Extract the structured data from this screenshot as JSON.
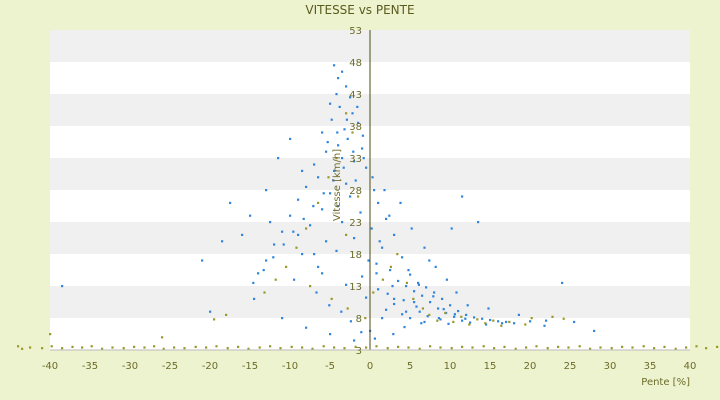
{
  "chart_data": {
    "type": "scatter",
    "title": "VITESSE vs PENTE",
    "xlabel": "Pente [%]",
    "ylabel": "Vitesse [km/h]",
    "xlim": [
      -40,
      40
    ],
    "ylim": [
      3,
      53
    ],
    "xticks": [
      -40,
      -35,
      -30,
      -25,
      -20,
      -15,
      -10,
      -5,
      0,
      5,
      10,
      15,
      20,
      25,
      30,
      35,
      40
    ],
    "xtick_labels": [
      "-40",
      "-35",
      "-30",
      "-25",
      "-20",
      "-15",
      "-10",
      "-5",
      "0",
      "5",
      "10",
      "15",
      "20",
      "25",
      "30",
      "35",
      "40"
    ],
    "yticks": [
      3,
      8,
      13,
      18,
      23,
      28,
      33,
      38,
      43,
      48,
      53
    ],
    "ytick_labels": [
      "3",
      "8",
      "13",
      "18",
      "23",
      "28",
      "33",
      "38",
      "43",
      "48",
      "53"
    ],
    "grid": "horizontal bands",
    "colors": {
      "background": "#eef3cf",
      "band_light": "#ffffff",
      "band_dark": "#f0f0f0",
      "axis": "#4b4b14",
      "series_blue": "#2e86de",
      "series_olive": "#9a9a2a"
    },
    "series": [
      {
        "color": "#2e86de",
        "points": [
          [
            -4.5,
            47.5
          ],
          [
            -4,
            45.5
          ],
          [
            -3.5,
            46.5
          ],
          [
            -3,
            44.2
          ],
          [
            -4.2,
            43
          ],
          [
            -2.5,
            42.5
          ],
          [
            -5,
            41.5
          ],
          [
            -3.8,
            41
          ],
          [
            -2.2,
            40
          ],
          [
            -4.8,
            39
          ],
          [
            -1.5,
            38.5
          ],
          [
            -3.2,
            37.5
          ],
          [
            -6,
            37
          ],
          [
            -2.8,
            36
          ],
          [
            -4,
            35
          ],
          [
            -1,
            34.5
          ],
          [
            -5.5,
            34
          ],
          [
            -3.5,
            33
          ],
          [
            -2,
            32.5
          ],
          [
            -7,
            32
          ],
          [
            -0.5,
            31.5
          ],
          [
            -4.5,
            31
          ],
          [
            -6.5,
            30
          ],
          [
            -1.8,
            29.5
          ],
          [
            -3,
            29
          ],
          [
            -8,
            28.5
          ],
          [
            0.5,
            28
          ],
          [
            -5,
            27.5
          ],
          [
            -2.5,
            27
          ],
          [
            -9,
            26.5
          ],
          [
            1,
            26
          ],
          [
            -4,
            25.5
          ],
          [
            -6,
            25
          ],
          [
            -1.2,
            24.5
          ],
          [
            -10,
            24
          ],
          [
            2,
            23.5
          ],
          [
            -3.5,
            23
          ],
          [
            -7.5,
            22.5
          ],
          [
            0.2,
            22
          ],
          [
            -11,
            21.5
          ],
          [
            3,
            21
          ],
          [
            -2,
            20.5
          ],
          [
            -5.5,
            20
          ],
          [
            -12,
            19.5
          ],
          [
            1.5,
            19
          ],
          [
            -4.2,
            18.5
          ],
          [
            -8.5,
            18
          ],
          [
            4,
            17.5
          ],
          [
            -13,
            17
          ],
          [
            0.8,
            16.5
          ],
          [
            -6.5,
            16
          ],
          [
            2.5,
            15.5
          ],
          [
            -14,
            15
          ],
          [
            5,
            14.8
          ],
          [
            -1,
            14.5
          ],
          [
            -9.5,
            14
          ],
          [
            3.5,
            13.8
          ],
          [
            6,
            13.5
          ],
          [
            -3,
            13.2
          ],
          [
            4.5,
            13
          ],
          [
            7,
            12.8
          ],
          [
            1,
            12.5
          ],
          [
            5.5,
            12.2
          ],
          [
            8,
            12
          ],
          [
            2.2,
            11.8
          ],
          [
            6.5,
            11.5
          ],
          [
            -0.5,
            11.2
          ],
          [
            9,
            11
          ],
          [
            4.2,
            10.8
          ],
          [
            7.5,
            10.5
          ],
          [
            3,
            10.2
          ],
          [
            10,
            10
          ],
          [
            5.8,
            9.8
          ],
          [
            8.5,
            9.5
          ],
          [
            2,
            9.3
          ],
          [
            11,
            9.1
          ],
          [
            6.2,
            9
          ],
          [
            9.5,
            8.8
          ],
          [
            4,
            8.6
          ],
          [
            12,
            8.5
          ],
          [
            7.2,
            8.3
          ],
          [
            10.5,
            8.2
          ],
          [
            13,
            8.1
          ],
          [
            5,
            8
          ],
          [
            14,
            7.9
          ],
          [
            8.8,
            7.8
          ],
          [
            15,
            7.7
          ],
          [
            11.5,
            7.6
          ],
          [
            16,
            7.5
          ],
          [
            6.8,
            7.4
          ],
          [
            17,
            7.4
          ],
          [
            12.5,
            7.3
          ],
          [
            18,
            7.2
          ],
          [
            9.8,
            7.1
          ],
          [
            20,
            7.5
          ],
          [
            14.5,
            7
          ],
          [
            22,
            7.6
          ],
          [
            16.5,
            7.2
          ],
          [
            24,
            13.5
          ],
          [
            28,
            6
          ],
          [
            -38.5,
            13
          ],
          [
            -21,
            17
          ],
          [
            -20,
            9
          ],
          [
            -16,
            21
          ],
          [
            -17.5,
            26
          ],
          [
            -18.5,
            20
          ],
          [
            -15,
            24
          ],
          [
            -13,
            28
          ],
          [
            -11.5,
            33
          ],
          [
            -10,
            36
          ],
          [
            -8.5,
            31
          ],
          [
            -12.5,
            23
          ],
          [
            -9,
            21
          ],
          [
            -7,
            18
          ],
          [
            -6,
            15
          ],
          [
            -14.5,
            11
          ],
          [
            -11,
            8
          ],
          [
            -8,
            6.5
          ],
          [
            -5,
            5.5
          ],
          [
            -2,
            4.5
          ],
          [
            0,
            6
          ],
          [
            1.5,
            8
          ],
          [
            3,
            11
          ],
          [
            4.5,
            9
          ],
          [
            5.5,
            10.5
          ],
          [
            2.8,
            13
          ],
          [
            0.8,
            15
          ],
          [
            -0.2,
            17
          ],
          [
            1.2,
            20
          ],
          [
            2.4,
            24
          ],
          [
            0.3,
            30
          ],
          [
            -0.8,
            33
          ],
          [
            1.8,
            28
          ],
          [
            3.8,
            26
          ],
          [
            5.2,
            22
          ],
          [
            6.8,
            19
          ],
          [
            8.2,
            16
          ],
          [
            9.6,
            14
          ],
          [
            10.8,
            12
          ],
          [
            12.2,
            10
          ],
          [
            13.5,
            23
          ],
          [
            11.5,
            27
          ],
          [
            10.2,
            22
          ],
          [
            7.4,
            17
          ],
          [
            4.8,
            15.5
          ],
          [
            6.1,
            13.2
          ],
          [
            7.9,
            11.4
          ],
          [
            9.2,
            9.4
          ],
          [
            10.6,
            8.6
          ],
          [
            11.9,
            7.9
          ],
          [
            -1.6,
            41
          ],
          [
            -2.9,
            39
          ],
          [
            -4.1,
            37
          ],
          [
            -5.3,
            35.5
          ],
          [
            -0.9,
            36.5
          ],
          [
            -2.1,
            34
          ],
          [
            -3.3,
            31.5
          ],
          [
            -4.6,
            29.5
          ],
          [
            -5.8,
            27.5
          ],
          [
            -7.1,
            25.5
          ],
          [
            -8.3,
            23.5
          ],
          [
            -9.6,
            21.5
          ],
          [
            -10.8,
            19.5
          ],
          [
            -12.1,
            17.5
          ],
          [
            -13.3,
            15.5
          ],
          [
            -14.6,
            13.5
          ],
          [
            -6.7,
            12
          ],
          [
            -5.1,
            10
          ],
          [
            -3.6,
            9
          ],
          [
            -2.4,
            7.5
          ],
          [
            -1.1,
            5.8
          ],
          [
            0.6,
            4.8
          ],
          [
            2.9,
            5.5
          ],
          [
            4.3,
            6.6
          ],
          [
            6.4,
            7.2
          ],
          [
            8.6,
            8
          ],
          [
            14.8,
            9.5
          ],
          [
            18.6,
            8.5
          ],
          [
            21.8,
            6.8
          ],
          [
            25.5,
            7.4
          ]
        ]
      },
      {
        "color": "#9a9a2a",
        "points": [
          [
            -44,
            3.6
          ],
          [
            -43.5,
            3.2
          ],
          [
            -42.5,
            3.4
          ],
          [
            -41,
            3.3
          ],
          [
            -39.8,
            3.6
          ],
          [
            -38.5,
            3.3
          ],
          [
            -37.2,
            3.5
          ],
          [
            -36,
            3.4
          ],
          [
            -34.8,
            3.6
          ],
          [
            -33.5,
            3.2
          ],
          [
            -32.2,
            3.4
          ],
          [
            -30.8,
            3.3
          ],
          [
            -29.5,
            3.5
          ],
          [
            -28.2,
            3.4
          ],
          [
            -27,
            3.6
          ],
          [
            -25.8,
            3.2
          ],
          [
            -24.5,
            3.4
          ],
          [
            -23.2,
            3.3
          ],
          [
            -21.8,
            3.5
          ],
          [
            -20.5,
            3.4
          ],
          [
            -19.2,
            3.6
          ],
          [
            -17.8,
            3.3
          ],
          [
            -16.5,
            3.5
          ],
          [
            -15.2,
            3.2
          ],
          [
            -13.8,
            3.4
          ],
          [
            -12.5,
            3.6
          ],
          [
            -11.2,
            3.3
          ],
          [
            -9.8,
            3.5
          ],
          [
            -8.5,
            3.4
          ],
          [
            -7.2,
            3.2
          ],
          [
            -5.8,
            3.6
          ],
          [
            -4.5,
            3.4
          ],
          [
            -3.2,
            3.3
          ],
          [
            -1.8,
            3.5
          ],
          [
            -0.5,
            3.4
          ],
          [
            0.8,
            3.6
          ],
          [
            2.2,
            3.3
          ],
          [
            3.5,
            3.5
          ],
          [
            4.8,
            3.4
          ],
          [
            6.2,
            3.2
          ],
          [
            7.5,
            3.6
          ],
          [
            8.8,
            3.4
          ],
          [
            10.2,
            3.3
          ],
          [
            11.5,
            3.5
          ],
          [
            12.8,
            3.4
          ],
          [
            14.2,
            3.6
          ],
          [
            15.5,
            3.3
          ],
          [
            16.8,
            3.5
          ],
          [
            18.2,
            3.2
          ],
          [
            19.5,
            3.4
          ],
          [
            20.8,
            3.6
          ],
          [
            22.2,
            3.3
          ],
          [
            23.5,
            3.5
          ],
          [
            24.8,
            3.4
          ],
          [
            26.2,
            3.6
          ],
          [
            27.5,
            3.2
          ],
          [
            28.8,
            3.4
          ],
          [
            30.2,
            3.3
          ],
          [
            31.5,
            3.5
          ],
          [
            32.8,
            3.4
          ],
          [
            34.2,
            3.6
          ],
          [
            35.5,
            3.3
          ],
          [
            36.8,
            3.5
          ],
          [
            38.2,
            3.2
          ],
          [
            39.5,
            3.4
          ],
          [
            40.8,
            3.6
          ],
          [
            42,
            3.3
          ],
          [
            43.5,
            3.5
          ],
          [
            -40,
            5.5
          ],
          [
            -26,
            5
          ],
          [
            -3,
            40
          ],
          [
            -2.2,
            37
          ],
          [
            -4.2,
            33
          ],
          [
            -5.2,
            30
          ],
          [
            -1.5,
            27
          ],
          [
            -6.5,
            26
          ],
          [
            -8,
            22
          ],
          [
            -3,
            21
          ],
          [
            -9.2,
            19
          ],
          [
            -10.5,
            16
          ],
          [
            -11.8,
            14
          ],
          [
            -13.2,
            12
          ],
          [
            -7.5,
            13
          ],
          [
            -4.8,
            11
          ],
          [
            -2.8,
            9.5
          ],
          [
            -0.6,
            8
          ],
          [
            0.4,
            12
          ],
          [
            1.6,
            14
          ],
          [
            2.6,
            16
          ],
          [
            3.4,
            18
          ],
          [
            4.6,
            13.5
          ],
          [
            5.4,
            11
          ],
          [
            6.6,
            9.5
          ],
          [
            7.4,
            8.5
          ],
          [
            8.4,
            7.6
          ],
          [
            9.4,
            8.8
          ],
          [
            10.4,
            7.4
          ],
          [
            11.4,
            8.2
          ],
          [
            12.4,
            7
          ],
          [
            13.4,
            7.8
          ],
          [
            14.4,
            7.2
          ],
          [
            15.4,
            7.6
          ],
          [
            16.4,
            6.8
          ],
          [
            17.4,
            7.4
          ],
          [
            19.4,
            7
          ],
          [
            20.2,
            8
          ],
          [
            22.8,
            8.2
          ],
          [
            24.2,
            7.9
          ],
          [
            -18,
            8.5
          ],
          [
            -19.5,
            7.8
          ]
        ]
      }
    ]
  }
}
